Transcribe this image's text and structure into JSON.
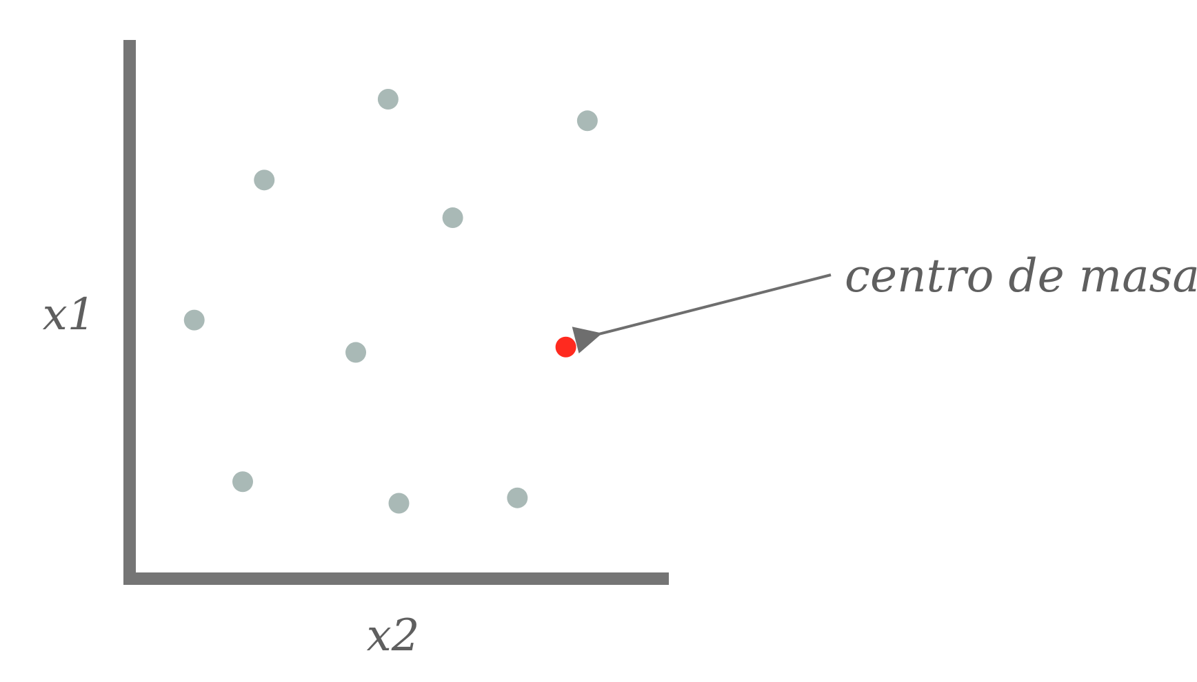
{
  "chart_data": {
    "type": "scatter",
    "title": "",
    "xlabel": "x2",
    "ylabel": "x1",
    "xlim": [
      0,
      10
    ],
    "ylim": [
      0,
      10
    ],
    "grid": false,
    "series": [
      {
        "points": [
          {
            "x": 4.8,
            "y": 8.9
          },
          {
            "x": 8.5,
            "y": 8.5
          },
          {
            "x": 2.5,
            "y": 7.4
          },
          {
            "x": 6.0,
            "y": 6.7
          },
          {
            "x": 1.2,
            "y": 4.8
          },
          {
            "x": 4.2,
            "y": 4.2
          },
          {
            "x": 2.1,
            "y": 1.8
          },
          {
            "x": 5.0,
            "y": 1.4
          },
          {
            "x": 7.2,
            "y": 1.5
          }
        ],
        "color": "#a9b9b6"
      },
      {
        "points": [
          {
            "x": 8.1,
            "y": 4.3
          }
        ],
        "color": "#ff2a1f"
      }
    ],
    "annotations": [
      {
        "text": "centro de masas",
        "target_series": 1,
        "target_point": 0
      }
    ]
  }
}
